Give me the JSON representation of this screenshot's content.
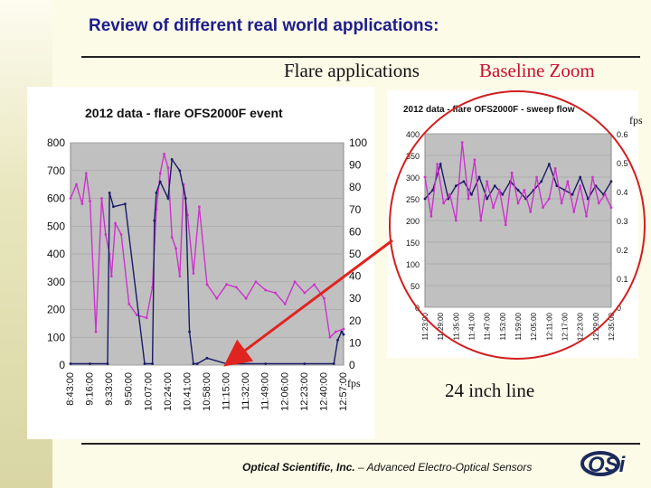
{
  "slide": {
    "title": "Review of different real world applications:",
    "label_flare": "Flare applications",
    "label_baseline": "Baseline Zoom",
    "label_fps_small": "fps",
    "label_24inch": "24 inch line",
    "footer_company": "Optical Scientific, Inc.",
    "footer_tagline": " – Advanced Electro-Optical Sensors",
    "logo_text": "OSi",
    "colors": {
      "title": "#1d1d8c",
      "baseline": "#c8102e",
      "circle": "#d21f1f",
      "arrow": "#e0241f"
    }
  },
  "chart_data": [
    {
      "type": "line",
      "title": "2012 data - flare OFS2000F event",
      "y_left_ticks": [
        0,
        100,
        200,
        300,
        400,
        500,
        600,
        700,
        800
      ],
      "y_left_range": [
        0,
        800
      ],
      "y_right_ticks": [
        0,
        10,
        20,
        30,
        40,
        50,
        60,
        70,
        80,
        90,
        100
      ],
      "y_right_range": [
        0,
        100
      ],
      "y_right_label": "fps",
      "x_ticks": [
        "8:43:00",
        "9:16:00",
        "9:33:00",
        "9:50:00",
        "10:07:00",
        "10:24:00",
        "10:41:00",
        "10:58:00",
        "11:15:00",
        "11:32:00",
        "11:49:00",
        "12:06:00",
        "12:23:00",
        "12:40:00",
        "12:57:00"
      ],
      "grid": true,
      "series": [
        {
          "color": "#cc33cc",
          "axis": "left",
          "x": [
            0,
            0.3,
            0.6,
            0.8,
            1,
            1.3,
            1.6,
            1.8,
            2,
            2.1,
            2.3,
            2.6,
            3,
            3.4,
            3.9,
            4.2,
            4.4,
            4.6,
            4.8,
            5,
            5.2,
            5.4,
            5.6,
            5.8,
            6,
            6.3,
            6.6,
            7,
            7.5,
            8,
            8.5,
            9,
            9.5,
            10,
            10.5,
            11,
            11.5,
            12,
            12.5,
            13,
            13.3,
            13.6,
            14
          ],
          "values": [
            600,
            650,
            580,
            690,
            590,
            120,
            600,
            470,
            400,
            320,
            510,
            470,
            220,
            180,
            170,
            280,
            560,
            690,
            760,
            710,
            460,
            420,
            320,
            650,
            540,
            330,
            570,
            290,
            240,
            290,
            280,
            240,
            300,
            270,
            260,
            220,
            300,
            260,
            290,
            240,
            100,
            120,
            130
          ]
        },
        {
          "color": "#1a1a66",
          "axis": "left",
          "x": [
            0,
            1,
            1.9,
            2,
            2.2,
            2.8,
            3.8,
            4.2,
            4.3,
            4.4,
            4.6,
            5,
            5.2,
            5.6,
            5.9,
            6.1,
            6.3,
            6.5,
            7,
            8,
            10,
            12,
            13.5,
            13.7,
            13.9,
            14
          ],
          "values": [
            5,
            5,
            5,
            620,
            570,
            580,
            5,
            5,
            520,
            620,
            660,
            600,
            740,
            700,
            600,
            120,
            5,
            5,
            25,
            5,
            5,
            5,
            5,
            90,
            120,
            110
          ]
        }
      ]
    },
    {
      "type": "line",
      "title": "2012 data - flare OFS2000F - sweep flow",
      "y_left_ticks": [
        0,
        50,
        100,
        150,
        200,
        250,
        300,
        350,
        400
      ],
      "y_left_range": [
        0,
        400
      ],
      "y_right_ticks": [
        0,
        0.1,
        0.2,
        0.3,
        0.4,
        0.5,
        0.6
      ],
      "y_right_range": [
        0,
        0.6
      ],
      "y_right_label": "fps",
      "x_ticks": [
        "11:23:00",
        "11:29:00",
        "11:35:00",
        "11:41:00",
        "11:47:00",
        "11:53:00",
        "11:59:00",
        "12:05:00",
        "12:11:00",
        "12:17:00",
        "12:23:00",
        "12:29:00",
        "12:35:00"
      ],
      "grid": true,
      "series": [
        {
          "color": "#1a1a66",
          "axis": "left",
          "x": [
            0,
            0.5,
            1,
            1.5,
            2,
            2.5,
            3,
            3.5,
            4,
            4.5,
            5,
            5.5,
            6,
            6.5,
            7,
            7.5,
            8,
            8.5,
            9,
            9.5,
            10,
            10.5,
            11,
            11.5,
            12
          ],
          "values": [
            250,
            270,
            330,
            250,
            280,
            290,
            260,
            300,
            250,
            280,
            260,
            290,
            270,
            250,
            270,
            290,
            330,
            280,
            270,
            260,
            300,
            250,
            280,
            260,
            290
          ]
        },
        {
          "color": "#cc33cc",
          "axis": "left",
          "x": [
            0,
            0.4,
            0.8,
            1.2,
            1.6,
            2,
            2.4,
            2.8,
            3.2,
            3.6,
            4,
            4.4,
            4.8,
            5.2,
            5.6,
            6,
            6.4,
            6.8,
            7.2,
            7.6,
            8,
            8.4,
            8.8,
            9.2,
            9.6,
            10,
            10.4,
            10.8,
            11.2,
            11.6,
            12
          ],
          "values": [
            300,
            210,
            330,
            240,
            260,
            200,
            380,
            250,
            340,
            200,
            290,
            230,
            270,
            190,
            310,
            240,
            270,
            220,
            300,
            230,
            250,
            320,
            240,
            290,
            220,
            280,
            210,
            300,
            240,
            260,
            230
          ]
        }
      ]
    }
  ]
}
